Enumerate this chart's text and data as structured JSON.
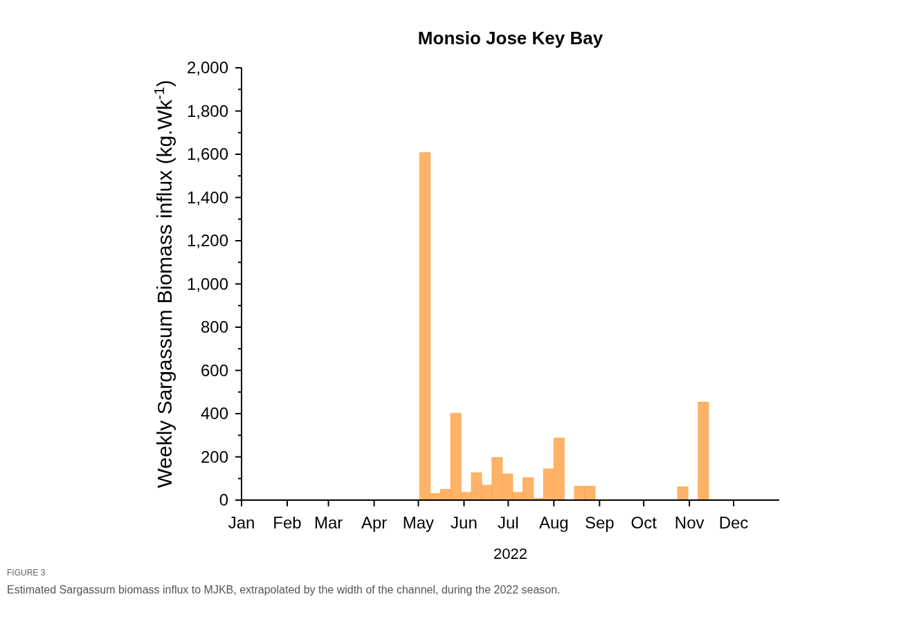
{
  "chart_data": {
    "type": "bar",
    "title": "Monsio Jose Key Bay",
    "xlabel": "2022",
    "ylabel": "Weekly Sargassum Biomass influx (kg.Wk$^{-1}$)",
    "x": [
      "2022-05-05T12:00",
      "2022-05-12T12:00",
      "2022-05-19T12:00",
      "2022-05-26T12:00",
      "2022-06-02T12:00",
      "2022-06-09T12:00",
      "2022-06-16T12:00",
      "2022-06-23T12:00",
      "2022-06-30T12:00",
      "2022-07-07T12:00",
      "2022-07-14T12:00",
      "2022-07-21T12:00",
      "2022-07-28T12:00",
      "2022-08-04T12:00",
      "2022-08-18T12:00",
      "2022-08-25T12:00",
      "2022-10-27T12:00",
      "2022-11-10T12:00"
    ],
    "values": [
      1607,
      30,
      49,
      401,
      35,
      126,
      68,
      197,
      121,
      35,
      103,
      8,
      144,
      287,
      64,
      64,
      61,
      453
    ],
    "color": "#ffa64d",
    "xlim": [
      "2022-01-01",
      "2023-01-01"
    ],
    "xticks": [
      {
        "value": "2022-01-01",
        "label": "Jan"
      },
      {
        "value": "2022-02-01",
        "label": "Feb"
      },
      {
        "value": "2022-03-01",
        "label": "Mar"
      },
      {
        "value": "2022-04-01",
        "label": "Apr"
      },
      {
        "value": "2022-05-01",
        "label": "May"
      },
      {
        "value": "2022-06-01",
        "label": "Jun"
      },
      {
        "value": "2022-07-01",
        "label": "Jul"
      },
      {
        "value": "2022-08-01",
        "label": "Aug"
      },
      {
        "value": "2022-09-01",
        "label": "Sep"
      },
      {
        "value": "2022-10-01",
        "label": "Oct"
      },
      {
        "value": "2022-11-01",
        "label": "Nov"
      },
      {
        "value": "2022-12-01",
        "label": "Dec"
      }
    ],
    "ylim": [
      0,
      2000
    ],
    "yticks": [
      0,
      {
        "value": 100,
        "label": null
      },
      200,
      {
        "value": 300,
        "label": null
      },
      400,
      {
        "value": 500,
        "label": null
      },
      600,
      {
        "value": 700,
        "label": null
      },
      800,
      {
        "value": 900,
        "label": null
      },
      {
        "value": 1000,
        "label": "1,000"
      },
      {
        "value": 1100,
        "label": null
      },
      {
        "value": 1200,
        "label": "1,200"
      },
      {
        "value": 1300,
        "label": null
      },
      {
        "value": 1400,
        "label": "1,400"
      },
      {
        "value": 1500,
        "label": null
      },
      {
        "value": 1600,
        "label": "1,600"
      },
      {
        "value": 1700,
        "label": null
      },
      {
        "value": 1800,
        "label": "1,800"
      },
      {
        "value": 1900,
        "label": null
      },
      {
        "value": 2000,
        "label": "2,000"
      }
    ],
    "grid": false,
    "annotations": [
      "FIGURE 3",
      "Estimated Sargassum biomass influx to MJKB, extrapolated by the width of the channel, during the 2022 season."
    ]
  }
}
